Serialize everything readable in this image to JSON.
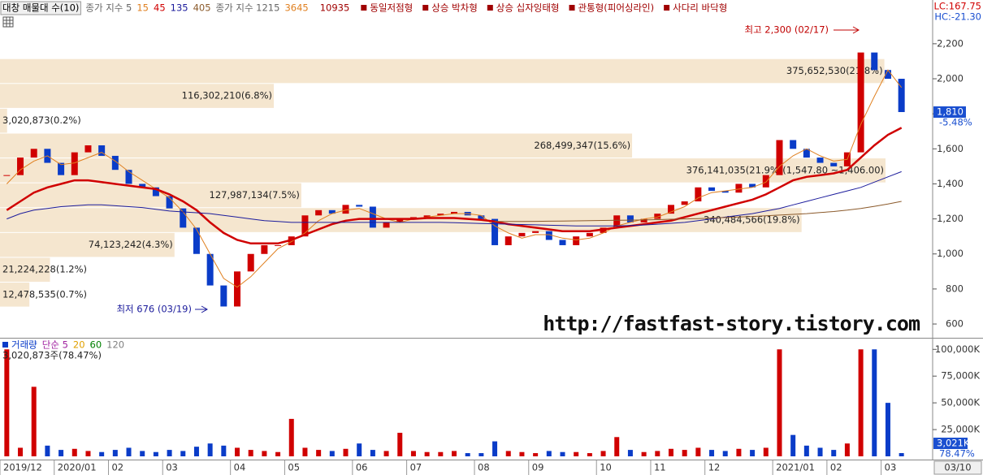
{
  "header": {
    "title": "대창 매물대 수(10)",
    "ma_group_1": "종가 지수 5",
    "ma_group_2": "종가 지수 1215",
    "ma_group_2_periods": [
      {
        "name": "3645",
        "color": "#e08020"
      },
      {
        "name": "10935",
        "color": "#a00000"
      }
    ],
    "patterns": [
      "동일저점형",
      "상승 박차형",
      "상승 십자잉태형",
      "관통형(피어싱라인)",
      "사다리 바닥형"
    ],
    "lc": "LC:167.75",
    "hc": "HC:-21.30"
  },
  "watermark": "http://fastfast-story.tistory.com",
  "chart_data": [
    {
      "type": "candlestick",
      "up_color": "#d00000",
      "down_color": "#0a3cc8",
      "values": [
        1450,
        1550,
        1600,
        1520,
        1450,
        1580,
        1620,
        1560,
        1480,
        1400,
        1380,
        1330,
        1260,
        1150,
        1000,
        820,
        700,
        900,
        1000,
        1050,
        1050,
        1100,
        1220,
        1250,
        1230,
        1280,
        1270,
        1150,
        1180,
        1200,
        1210,
        1220,
        1230,
        1240,
        1220,
        1200,
        1050,
        1100,
        1120,
        1130,
        1080,
        1050,
        1100,
        1120,
        1150,
        1220,
        1180,
        1200,
        1230,
        1280,
        1300,
        1380,
        1360,
        1350,
        1400,
        1380,
        1450,
        1650,
        1600,
        1550,
        1520,
        1500,
        1580,
        2150,
        2050,
        2000,
        1810
      ],
      "series": [
        {
          "name": "15",
          "color": "#e08020",
          "width": 1,
          "values": [
            1400,
            1480,
            1530,
            1560,
            1510,
            1520,
            1550,
            1580,
            1530,
            1470,
            1420,
            1370,
            1320,
            1240,
            1140,
            1000,
            860,
            810,
            870,
            950,
            1030,
            1070,
            1120,
            1190,
            1230,
            1250,
            1260,
            1230,
            1200,
            1180,
            1200,
            1210,
            1220,
            1230,
            1230,
            1220,
            1160,
            1120,
            1090,
            1110,
            1110,
            1090,
            1080,
            1090,
            1120,
            1160,
            1180,
            1200,
            1210,
            1240,
            1270,
            1320,
            1350,
            1360,
            1370,
            1380,
            1410,
            1500,
            1560,
            1600,
            1560,
            1530,
            1540,
            1740,
            1900,
            2050,
            1950
          ]
        },
        {
          "name": "45",
          "color": "#d00000",
          "width": 2.5,
          "values": [
            1250,
            1300,
            1350,
            1380,
            1400,
            1420,
            1420,
            1410,
            1400,
            1390,
            1380,
            1370,
            1340,
            1300,
            1250,
            1180,
            1120,
            1080,
            1060,
            1060,
            1060,
            1080,
            1110,
            1140,
            1170,
            1190,
            1200,
            1200,
            1200,
            1200,
            1200,
            1205,
            1205,
            1205,
            1200,
            1195,
            1185,
            1170,
            1160,
            1150,
            1140,
            1130,
            1130,
            1130,
            1140,
            1150,
            1160,
            1170,
            1180,
            1190,
            1210,
            1230,
            1250,
            1270,
            1290,
            1310,
            1340,
            1380,
            1420,
            1440,
            1450,
            1460,
            1480,
            1550,
            1620,
            1680,
            1720
          ]
        },
        {
          "name": "135",
          "color": "#1c1c9c",
          "width": 1,
          "values": [
            1200,
            1230,
            1250,
            1260,
            1270,
            1275,
            1280,
            1280,
            1275,
            1270,
            1265,
            1255,
            1245,
            1240,
            1235,
            1230,
            1220,
            1210,
            1200,
            1190,
            1185,
            1180,
            1180,
            1180,
            1180,
            1180,
            1180,
            1180,
            1180,
            1180,
            1180,
            1180,
            1180,
            1178,
            1176,
            1174,
            1172,
            1170,
            1168,
            1166,
            1164,
            1162,
            1160,
            1160,
            1160,
            1160,
            1162,
            1165,
            1170,
            1175,
            1180,
            1190,
            1200,
            1210,
            1220,
            1230,
            1245,
            1260,
            1280,
            1300,
            1320,
            1340,
            1360,
            1380,
            1410,
            1440,
            1470
          ]
        },
        {
          "name": "405",
          "color": "#8b5a2b",
          "width": 1,
          "values": [
            null,
            null,
            null,
            null,
            null,
            null,
            null,
            null,
            null,
            null,
            null,
            null,
            null,
            null,
            null,
            null,
            null,
            null,
            null,
            null,
            null,
            null,
            null,
            null,
            null,
            null,
            null,
            null,
            null,
            null,
            null,
            null,
            null,
            null,
            null,
            null,
            1185,
            1185,
            1185,
            1186,
            1187,
            1188,
            1189,
            1190,
            1191,
            1192,
            1193,
            1194,
            1196,
            1198,
            1200,
            1202,
            1205,
            1208,
            1211,
            1214,
            1218,
            1222,
            1226,
            1230,
            1236,
            1242,
            1250,
            1260,
            1272,
            1285,
            1300
          ]
        }
      ],
      "price_bands": [
        {
          "high": 2115.0,
          "low": 1973.2,
          "volume": 375652530,
          "label": "375,652,530(21.8%)"
        },
        {
          "high": 1973.2,
          "low": 1831.4,
          "volume": 116302210,
          "label": "116,302,210(6.8%)"
        },
        {
          "high": 1831.4,
          "low": 1689.6,
          "volume": 3020873,
          "label": "3,020,873(0.2%)"
        },
        {
          "high": 1689.6,
          "low": 1547.8,
          "volume": 268499347,
          "label": "268,499,347(15.6%)"
        },
        {
          "high": 1547.8,
          "low": 1406.0,
          "volume": 376141035,
          "label": "376,141,035(21.9%)(1,547.80 ~1,406.00)"
        },
        {
          "high": 1406.0,
          "low": 1264.2,
          "volume": 127987134,
          "label": "127,987,134(7.5%)"
        },
        {
          "high": 1264.2,
          "low": 1122.4,
          "volume": 340484566,
          "label": "340,484,566(19.8%)"
        },
        {
          "high": 1122.4,
          "low": 980.6,
          "volume": 74123242,
          "label": "74,123,242(4.3%)"
        },
        {
          "high": 980.6,
          "low": 838.8,
          "volume": 21224228,
          "label": "21,224,228(1.2%)"
        },
        {
          "high": 838.8,
          "low": 697.0,
          "volume": 12478535,
          "label": "12,478,535(0.7%)"
        }
      ],
      "band_color": "#f5e6cf",
      "high_label": "최고 2,300 (02/17)",
      "low_label": "최저 676 (03/19)",
      "current": {
        "value": 1810,
        "label": "1,810"
      },
      "change": "-5.48%",
      "ylim": [
        526,
        2357
      ],
      "yticks": [
        {
          "value": 2200,
          "label": "2,200"
        },
        {
          "value": 2000,
          "label": "2,000"
        },
        {
          "value": 1800,
          "label": "1,800"
        },
        {
          "value": 1600,
          "label": "1,600"
        },
        {
          "value": 1400,
          "label": "1,400"
        },
        {
          "value": 1200,
          "label": "1,200"
        },
        {
          "value": 1000,
          "label": "1,000"
        },
        800,
        600
      ]
    },
    {
      "type": "bar",
      "title": "거래량",
      "legend": [
        {
          "name": "단순 5",
          "color": "#a020a0"
        },
        {
          "name": "20",
          "color": "#e0a000"
        },
        {
          "name": "60",
          "color": "#008000"
        },
        {
          "name": "120",
          "color": "#808080"
        }
      ],
      "summary": "3,020,873주(78.47%)",
      "categories": [
        "2019/12",
        null,
        null,
        null,
        "2020/01",
        null,
        null,
        null,
        "02",
        null,
        null,
        null,
        "03",
        null,
        null,
        null,
        null,
        "04",
        null,
        null,
        null,
        "05",
        null,
        null,
        null,
        null,
        "06",
        null,
        null,
        null,
        "07",
        null,
        null,
        null,
        null,
        "08",
        null,
        null,
        null,
        "09",
        null,
        null,
        null,
        null,
        "10",
        null,
        null,
        null,
        "11",
        null,
        null,
        null,
        "12",
        null,
        null,
        null,
        null,
        "2021/01",
        null,
        null,
        null,
        "02",
        null,
        null,
        null,
        "03",
        null
      ],
      "values": [
        100000,
        8000,
        65000,
        10000,
        6000,
        7000,
        5000,
        4000,
        6000,
        8000,
        5000,
        4000,
        6000,
        5000,
        9000,
        12000,
        10000,
        8000,
        6000,
        5000,
        4000,
        35000,
        8000,
        6000,
        5000,
        7000,
        12000,
        6000,
        5000,
        22000,
        5000,
        4000,
        4000,
        5000,
        3000,
        3000,
        14000,
        5000,
        4000,
        3000,
        5000,
        4000,
        4000,
        3000,
        5000,
        18000,
        6000,
        4000,
        5000,
        7000,
        6000,
        8000,
        6000,
        5000,
        7000,
        6000,
        8000,
        100000,
        20000,
        10000,
        8000,
        6000,
        12000,
        100000,
        100000,
        50000,
        3021
      ],
      "current": {
        "value": 3021,
        "label": "3,021K"
      },
      "ratio": "78.47%",
      "last_date": "03/10",
      "ylim": [
        0,
        104000
      ],
      "yticks": [
        {
          "value": 100000,
          "label": "100,000K"
        },
        {
          "value": 75000,
          "label": "75,000K"
        },
        {
          "value": 50000,
          "label": "50,000K"
        },
        {
          "value": 25000,
          "label": "25,000K"
        }
      ]
    }
  ]
}
